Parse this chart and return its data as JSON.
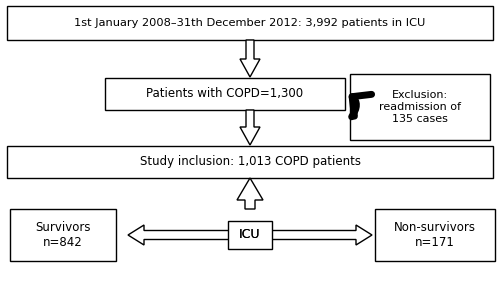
{
  "box1_text": "1st January 2008–31th December 2012: 3,992 patients in ICU",
  "box2_text": "Patients with COPD=1,300",
  "box3_text": "Study inclusion: 1,013 COPD patients",
  "box_excl_text": "Exclusion:\nreadmission of\n135 cases",
  "box_surv_text": "Survivors\nn=842",
  "box_nonsurv_text": "Non-survivors\nn=171",
  "icu_label": "ICU",
  "bg_color": "#ffffff",
  "box_color": "#ffffff",
  "box_edge_color": "#000000",
  "text_color": "#000000"
}
